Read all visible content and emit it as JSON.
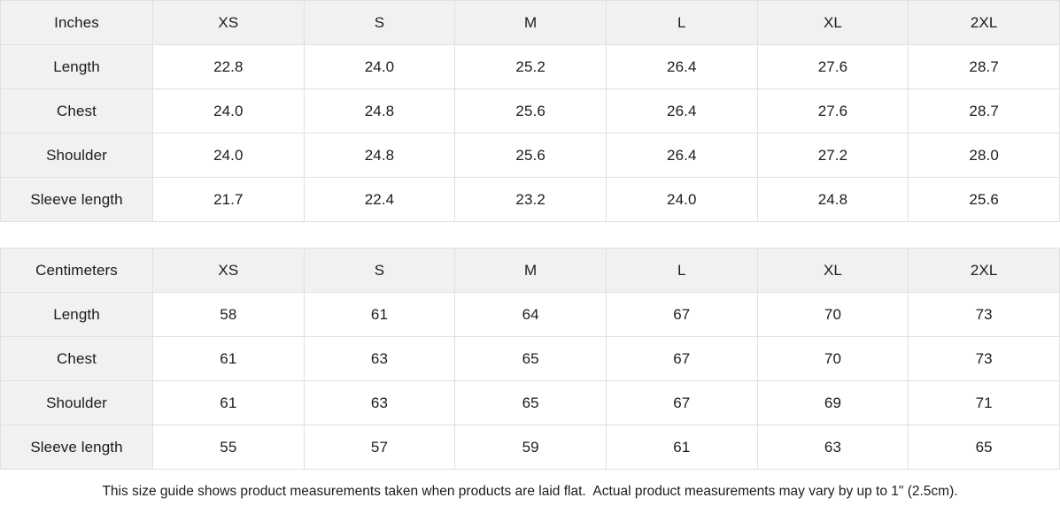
{
  "colors": {
    "header_bg": "#f1f1f1",
    "cell_bg": "#ffffff",
    "border": "#e0e0e0",
    "text": "#1c1c1c"
  },
  "tables": [
    {
      "unit": "Inches",
      "sizes": [
        "XS",
        "S",
        "M",
        "L",
        "XL",
        "2XL"
      ],
      "rows": [
        {
          "label": "Length",
          "values": [
            "22.8",
            "24.0",
            "25.2",
            "26.4",
            "27.6",
            "28.7"
          ]
        },
        {
          "label": "Chest",
          "values": [
            "24.0",
            "24.8",
            "25.6",
            "26.4",
            "27.6",
            "28.7"
          ]
        },
        {
          "label": "Shoulder",
          "values": [
            "24.0",
            "24.8",
            "25.6",
            "26.4",
            "27.2",
            "28.0"
          ]
        },
        {
          "label": "Sleeve length",
          "values": [
            "21.7",
            "22.4",
            "23.2",
            "24.0",
            "24.8",
            "25.6"
          ]
        }
      ]
    },
    {
      "unit": "Centimeters",
      "sizes": [
        "XS",
        "S",
        "M",
        "L",
        "XL",
        "2XL"
      ],
      "rows": [
        {
          "label": "Length",
          "values": [
            "58",
            "61",
            "64",
            "67",
            "70",
            "73"
          ]
        },
        {
          "label": "Chest",
          "values": [
            "61",
            "63",
            "65",
            "67",
            "70",
            "73"
          ]
        },
        {
          "label": "Shoulder",
          "values": [
            "61",
            "63",
            "65",
            "67",
            "69",
            "71"
          ]
        },
        {
          "label": "Sleeve length",
          "values": [
            "55",
            "57",
            "59",
            "61",
            "63",
            "65"
          ]
        }
      ]
    }
  ],
  "footer": {
    "note": "This size guide shows product measurements taken when products are laid flat.  Actual product measurements may vary by up to 1\" (2.5cm)."
  }
}
